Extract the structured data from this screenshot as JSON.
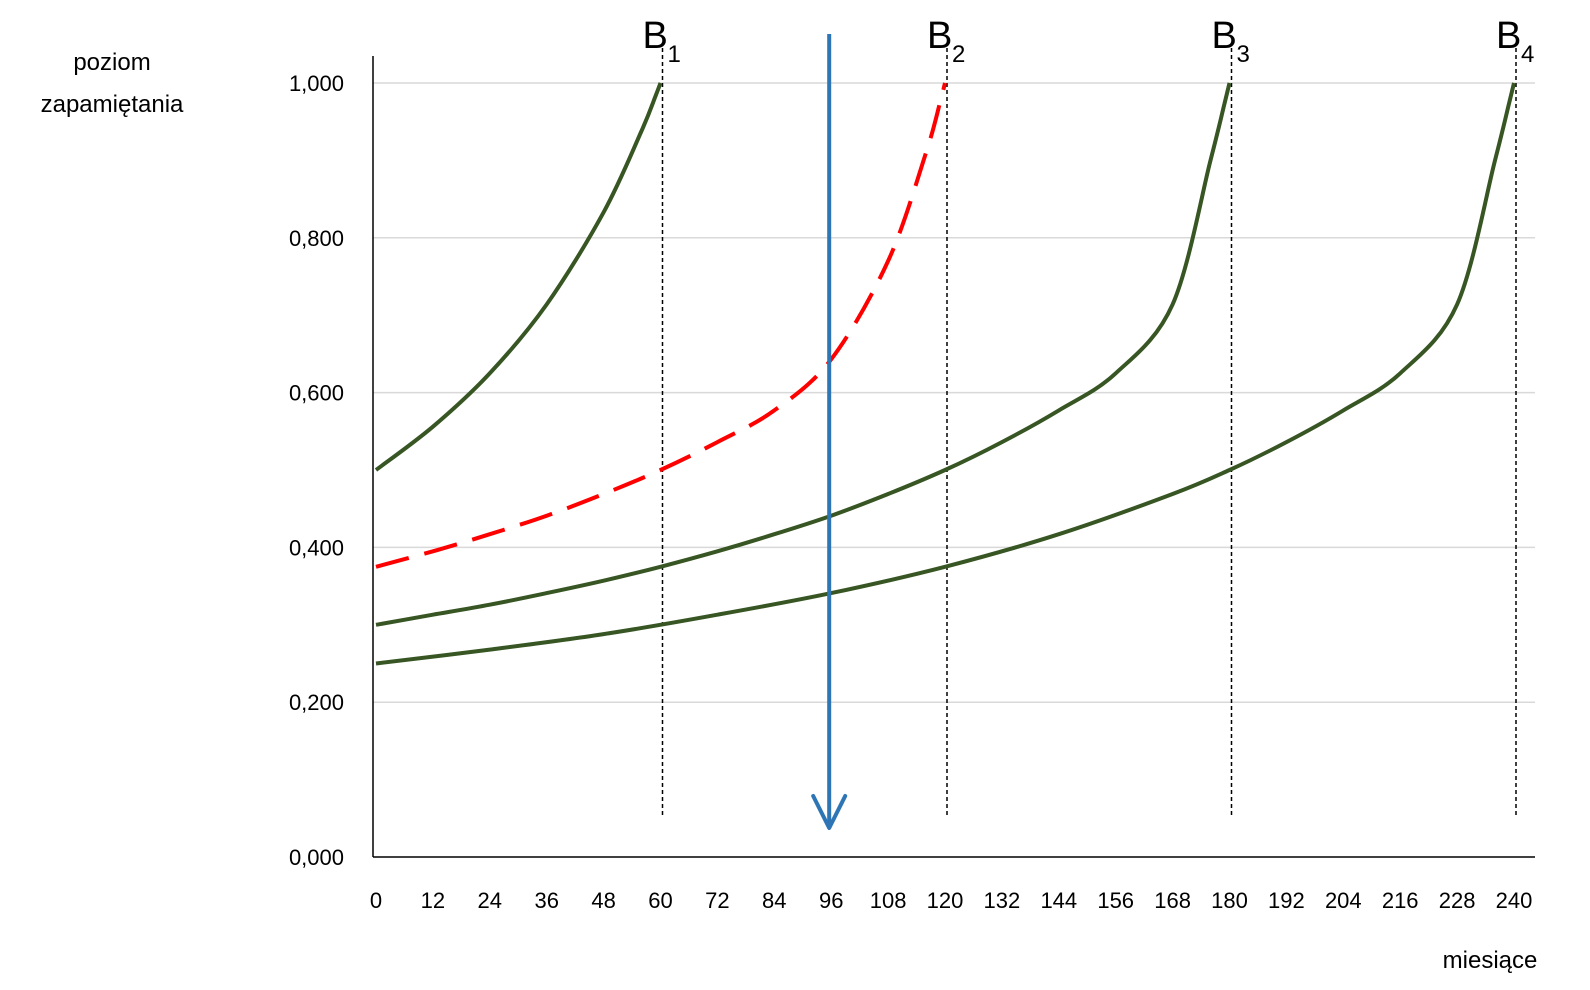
{
  "chart_data": {
    "type": "line",
    "title": "",
    "ylabel_lines": [
      "poziom",
      "zapamiętania"
    ],
    "xlabel": "miesiące",
    "xlim": [
      0,
      240
    ],
    "ylim": [
      0,
      1
    ],
    "y_ticks": [
      "0,000",
      "0,200",
      "0,400",
      "0,600",
      "0,800",
      "1,000"
    ],
    "y_tick_values": [
      0,
      0.2,
      0.4,
      0.6,
      0.8,
      1.0
    ],
    "x_ticks": [
      "0",
      "12",
      "24",
      "36",
      "48",
      "60",
      "72",
      "84",
      "96",
      "108",
      "120",
      "132",
      "144",
      "156",
      "168",
      "180",
      "192",
      "204",
      "216",
      "228",
      "240"
    ],
    "x_tick_values": [
      0,
      12,
      24,
      36,
      48,
      60,
      72,
      84,
      96,
      108,
      120,
      132,
      144,
      156,
      168,
      180,
      192,
      204,
      216,
      228,
      240
    ],
    "grid": "horizontal",
    "series": [
      {
        "style": "solid",
        "color": "#375623",
        "x": [
          0,
          12,
          24,
          36,
          48,
          56,
          59,
          60
        ],
        "y": [
          0.5,
          0.556,
          0.625,
          0.714,
          0.833,
          0.938,
          0.984,
          1.0
        ]
      },
      {
        "style": "dashed",
        "color": "#ff0000",
        "x": [
          0,
          12,
          24,
          36,
          48,
          60,
          72,
          84,
          96,
          108,
          116,
          119,
          120
        ],
        "y": [
          0.375,
          0.395,
          0.417,
          0.441,
          0.469,
          0.5,
          0.536,
          0.577,
          0.643,
          0.77,
          0.91,
          0.976,
          1.0
        ]
      },
      {
        "style": "solid",
        "color": "#375623",
        "x": [
          0,
          12,
          24,
          36,
          48,
          60,
          72,
          84,
          96,
          108,
          120,
          132,
          144,
          156,
          168,
          176,
          179,
          180
        ],
        "y": [
          0.3,
          0.313,
          0.326,
          0.341,
          0.357,
          0.375,
          0.395,
          0.417,
          0.441,
          0.469,
          0.5,
          0.536,
          0.577,
          0.625,
          0.714,
          0.9,
          0.975,
          1.0
        ]
      },
      {
        "style": "solid",
        "color": "#375623",
        "x": [
          0,
          24,
          48,
          72,
          96,
          120,
          144,
          168,
          180,
          192,
          204,
          216,
          228,
          236,
          239,
          240
        ],
        "y": [
          0.25,
          0.268,
          0.288,
          0.313,
          0.341,
          0.375,
          0.417,
          0.469,
          0.5,
          0.536,
          0.577,
          0.625,
          0.714,
          0.9,
          0.975,
          1.0
        ]
      }
    ],
    "markers": [
      {
        "letter": "B",
        "sub": "1",
        "x": 60
      },
      {
        "letter": "B",
        "sub": "2",
        "x": 120
      },
      {
        "letter": "B",
        "sub": "3",
        "x": 180
      },
      {
        "letter": "B",
        "sub": "4",
        "x": 240
      }
    ],
    "arrow": {
      "x": 96,
      "direction": "down",
      "color": "#2e75b6"
    }
  }
}
